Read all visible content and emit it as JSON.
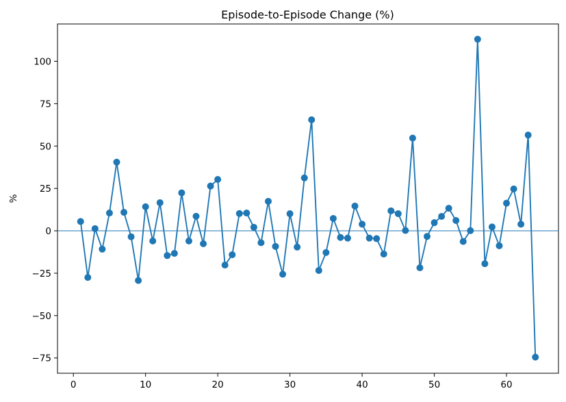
{
  "chart_data": {
    "type": "line",
    "title": "Episode-to-Episode Change (%)",
    "xlabel": "",
    "ylabel": "%",
    "xlim": [
      -2.2,
      67.2
    ],
    "ylim": [
      -84,
      122
    ],
    "x_ticks": [
      0,
      10,
      20,
      30,
      40,
      50,
      60
    ],
    "y_ticks": [
      -75,
      -50,
      -25,
      0,
      25,
      50,
      75,
      100
    ],
    "y_tick_labels": [
      "−75",
      "−50",
      "−25",
      "0",
      "25",
      "50",
      "75",
      "100"
    ],
    "grid": false,
    "reference_line_y": 0,
    "colors": {
      "series": "#1f77b4",
      "axis": "#000000",
      "background": "#ffffff"
    },
    "series": [
      {
        "marker": "circle",
        "x": [
          1,
          2,
          3,
          4,
          5,
          6,
          7,
          8,
          9,
          10,
          11,
          12,
          13,
          14,
          15,
          16,
          17,
          18,
          19,
          20,
          21,
          22,
          23,
          24,
          25,
          26,
          27,
          28,
          29,
          30,
          31,
          32,
          33,
          34,
          35,
          36,
          37,
          38,
          39,
          40,
          41,
          42,
          43,
          44,
          45,
          46,
          47,
          48,
          49,
          50,
          51,
          52,
          53,
          54,
          55,
          56,
          57,
          58,
          59,
          60,
          61,
          62,
          63,
          64
        ],
        "values": [
          5.5,
          -27.5,
          1.3,
          -10.8,
          10.5,
          40.5,
          10.9,
          -3.5,
          -29.3,
          14.2,
          -6,
          16.6,
          -14.6,
          -13.3,
          22.4,
          -6,
          8.6,
          -7.6,
          26.4,
          30.3,
          -20.2,
          -14.1,
          10.2,
          10.5,
          2.1,
          -7,
          17.4,
          -9.2,
          -25.6,
          10.1,
          -9.6,
          31.2,
          65.5,
          -23.4,
          -12.8,
          7.3,
          -3.9,
          -4.3,
          14.6,
          3.9,
          -4.3,
          -4.6,
          -13.7,
          11.8,
          10.1,
          0.2,
          54.7,
          -21.8,
          -3.3,
          4.8,
          8.5,
          13.3,
          6.1,
          -6.3,
          0.1,
          113,
          -19.4,
          2.3,
          -8.8,
          16.3,
          24.7,
          3.9,
          56.5,
          -74.5
        ]
      }
    ]
  }
}
